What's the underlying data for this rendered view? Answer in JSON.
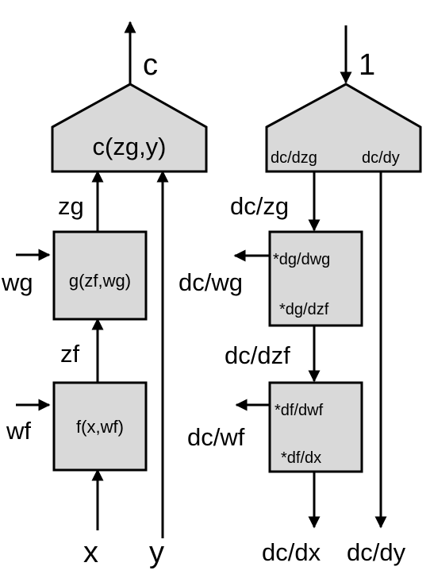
{
  "forward": {
    "output_label": "c",
    "cost_node_label": "c(zg,y)",
    "zg_label": "zg",
    "g_node_label": "g(zf,wg)",
    "wg_label": "wg",
    "zf_label": "zf",
    "f_node_label": "f(x,wf)",
    "wf_label": "wf",
    "x_label": "x",
    "y_label": "y"
  },
  "backward": {
    "seed_label": "1",
    "cost_grad_zg": "dc/dzg",
    "cost_grad_y": "dc/dy",
    "dc_zg_label": "dc/zg",
    "g_grad_wg": "*dg/dwg",
    "g_grad_zf": "*dg/dzf",
    "dc_wg_label": "dc/wg",
    "dc_dzf_label": "dc/dzf",
    "f_grad_wf": "*df/dwf",
    "f_grad_x": "*df/dx",
    "dc_wf_label": "dc/wf",
    "dc_dx_label": "dc/dx",
    "dc_dy_label": "dc/dy"
  }
}
